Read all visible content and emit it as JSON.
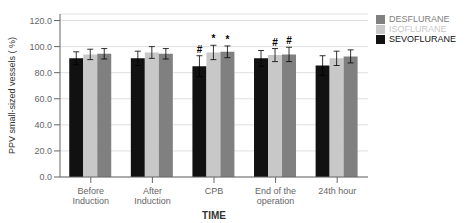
{
  "chart_data": {
    "type": "bar",
    "categories": [
      "Before Induction",
      "After Induction",
      "CPB",
      "End of the operation",
      "24th hour"
    ],
    "series": [
      {
        "name": "SEVOFLURANE",
        "color": "#111111",
        "values": [
          91.0,
          91.0,
          85.0,
          91.0,
          85.5
        ],
        "errors": [
          5.0,
          5.5,
          8.0,
          6.0,
          7.5
        ]
      },
      {
        "name": "ISOFLURANE",
        "color": "#c8c8c8",
        "values": [
          94.0,
          95.5,
          95.5,
          93.5,
          91.0
        ],
        "errors": [
          4.0,
          4.5,
          5.5,
          5.0,
          5.5
        ]
      },
      {
        "name": "DESFLURANE",
        "color": "#808080",
        "values": [
          94.5,
          94.5,
          96.0,
          94.0,
          92.5
        ],
        "errors": [
          4.0,
          4.0,
          4.5,
          5.5,
          5.0
        ]
      }
    ],
    "xlabel": "TIME",
    "ylabel": "PPV small-sized vessels ( %)",
    "ylim": [
      0,
      125
    ],
    "yticks": [
      {
        "value": 0,
        "label": "0.0"
      },
      {
        "value": 20,
        "label": "20.0"
      },
      {
        "value": 40,
        "label": "40.0"
      },
      {
        "value": 60,
        "label": "60.0"
      },
      {
        "value": 80,
        "label": "80.0"
      },
      {
        "value": 100,
        "label": "100.0"
      },
      {
        "value": 120,
        "label": "120.0"
      }
    ],
    "grid": true,
    "legend": "right",
    "annotations": [
      {
        "text": "#",
        "series": "SEVOFLURANE",
        "category": "CPB"
      },
      {
        "text": "*",
        "series": "ISOFLURANE",
        "category": "CPB"
      },
      {
        "text": "*",
        "series": "DESFLURANE",
        "category": "CPB"
      },
      {
        "text": "#",
        "series": "ISOFLURANE",
        "category": "End of the operation"
      },
      {
        "text": "#",
        "series": "DESFLURANE",
        "category": "End of the operation"
      }
    ]
  }
}
